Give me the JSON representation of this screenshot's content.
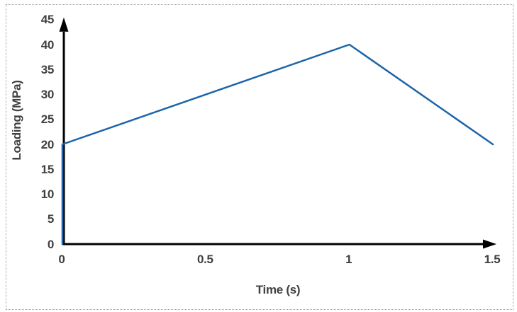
{
  "chart_data": {
    "type": "line",
    "title": "",
    "xlabel": "Time (s)",
    "ylabel": "Loading (MPa)",
    "xlim": [
      0,
      1.5
    ],
    "ylim": [
      0,
      45
    ],
    "grid": false,
    "legend": false,
    "axes_arrows": true,
    "x_ticks": [
      {
        "value": 0,
        "label": "0"
      },
      {
        "value": 0.5,
        "label": "0.5"
      },
      {
        "value": 1,
        "label": "1"
      },
      {
        "value": 1.5,
        "label": "1.5"
      }
    ],
    "y_ticks": [
      {
        "value": 0,
        "label": "0"
      },
      {
        "value": 5,
        "label": "5"
      },
      {
        "value": 10,
        "label": "10"
      },
      {
        "value": 15,
        "label": "15"
      },
      {
        "value": 20,
        "label": "20"
      },
      {
        "value": 25,
        "label": "25"
      },
      {
        "value": 30,
        "label": "30"
      },
      {
        "value": 35,
        "label": "35"
      },
      {
        "value": 40,
        "label": "40"
      },
      {
        "value": 45,
        "label": "45"
      }
    ],
    "series": [
      {
        "name": "Loading",
        "color": "#1c64ab",
        "points": [
          [
            0,
            0
          ],
          [
            0,
            20
          ],
          [
            1,
            40
          ],
          [
            1.5,
            20
          ]
        ]
      }
    ],
    "style": {
      "text_color": "#404040",
      "axis_color": "#000000",
      "frame_border_color": "#9c9c9c",
      "background": "#ffffff"
    }
  }
}
